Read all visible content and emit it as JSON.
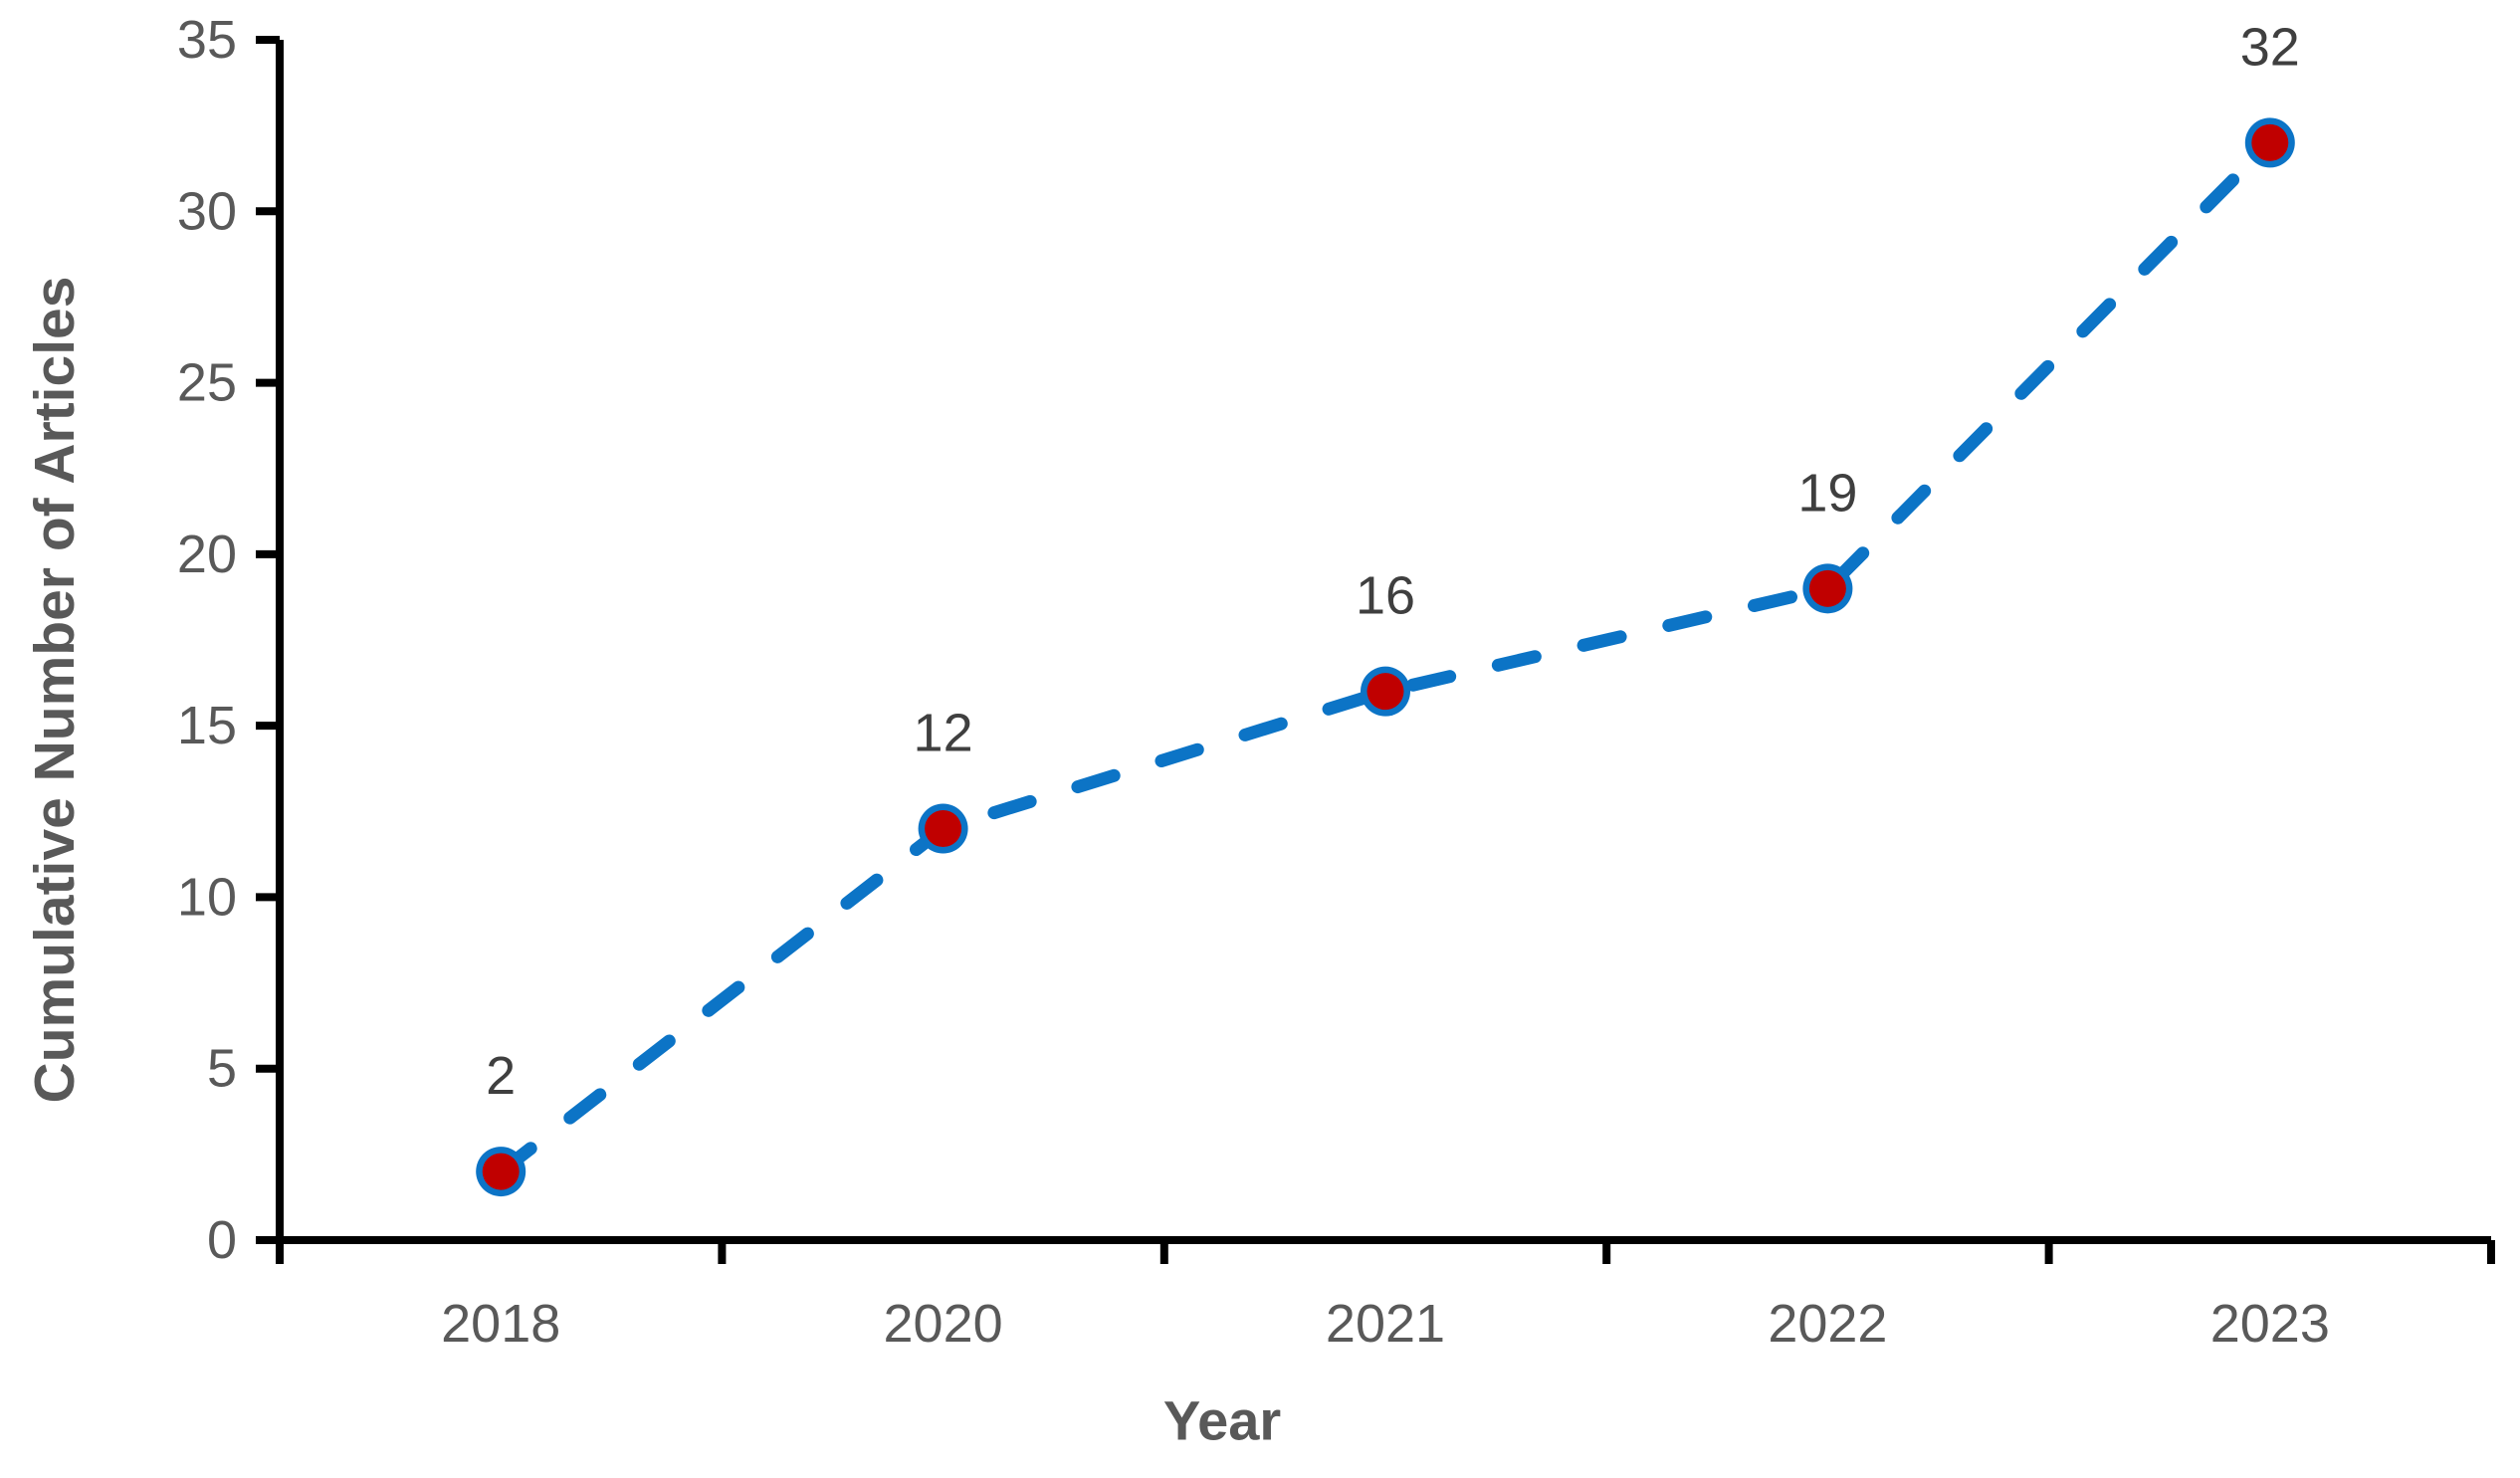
{
  "chart_data": {
    "type": "line",
    "title": "",
    "xlabel": "Year",
    "ylabel": "Cumulative Number of Articles",
    "categories": [
      "2018",
      "2020",
      "2021",
      "2022",
      "2023"
    ],
    "series": [
      {
        "name": "Cumulative Number of Articles",
        "values": [
          2,
          12,
          16,
          19,
          32
        ]
      }
    ],
    "data_labels": [
      "2",
      "12",
      "16",
      "19",
      "32"
    ],
    "data_labels_visible": true,
    "y_axis": {
      "min": 0,
      "max": 35,
      "tick_step": 5,
      "tick_labels": [
        "0",
        "5",
        "10",
        "15",
        "20",
        "25",
        "30",
        "35"
      ]
    },
    "x_axis": {
      "tick_marks_between_categories": true
    },
    "grid": false,
    "legend": false,
    "line_style": "dashed",
    "marker_shape": "circle",
    "colors": {
      "line": "#0C74C6",
      "marker_fill": "#C00000",
      "marker_border": "#0C74C6",
      "axis": "#000000",
      "tick_text": "#595959",
      "data_label_text": "#3F3F3F",
      "background": "#FFFFFF"
    }
  }
}
